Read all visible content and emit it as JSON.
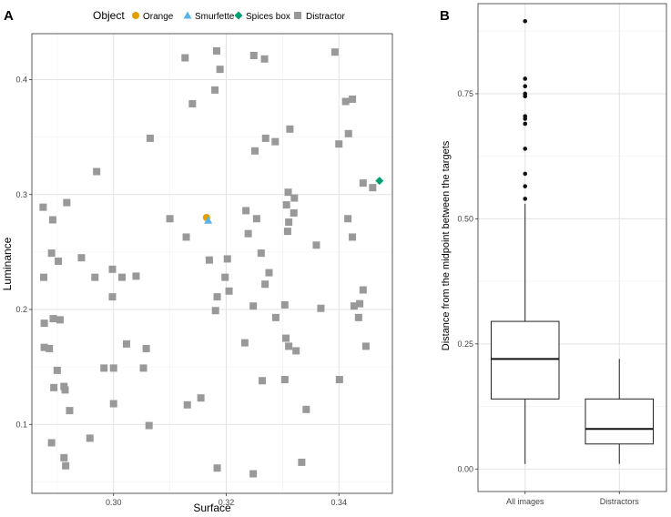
{
  "panel_labels": {
    "a": "A",
    "b": "B"
  },
  "legend": {
    "title": "Object",
    "items": [
      {
        "label": "Orange",
        "color": "#E69F00",
        "shape": "circle"
      },
      {
        "label": "Smurfette",
        "color": "#56B4E9",
        "shape": "triangle"
      },
      {
        "label": "Spices box",
        "color": "#009E73",
        "shape": "diamond"
      },
      {
        "label": "Distractor",
        "color": "#999999",
        "shape": "square"
      }
    ]
  },
  "chart_data": [
    {
      "type": "scatter",
      "panel": "A",
      "xlabel": "Surface",
      "ylabel": "Luminance",
      "xlim": [
        0.2855,
        0.3495
      ],
      "ylim": [
        0.04,
        0.44
      ],
      "xticks": [
        0.3,
        0.32,
        0.34
      ],
      "xtick_labels": [
        "0.30",
        "0.32",
        "0.34"
      ],
      "yticks": [
        0.1,
        0.2,
        0.3,
        0.4
      ],
      "ytick_labels": [
        "0.1",
        "0.2",
        "0.3",
        "0.4"
      ],
      "grid": true,
      "series": [
        {
          "name": "Orange",
          "points": [
            [
              0.3165,
              0.28
            ]
          ]
        },
        {
          "name": "Smurfette",
          "points": [
            [
              0.3168,
              0.277
            ]
          ]
        },
        {
          "name": "Spices box",
          "points": [
            [
              0.3472,
              0.312
            ]
          ]
        },
        {
          "name": "Distractor",
          "points": [
            [
              0.3127,
              0.419
            ],
            [
              0.3183,
              0.425
            ],
            [
              0.3189,
              0.409
            ],
            [
              0.318,
              0.391
            ],
            [
              0.3249,
              0.421
            ],
            [
              0.3268,
              0.418
            ],
            [
              0.3393,
              0.424
            ],
            [
              0.3424,
              0.383
            ],
            [
              0.3412,
              0.381
            ],
            [
              0.314,
              0.379
            ],
            [
              0.3065,
              0.349
            ],
            [
              0.327,
              0.349
            ],
            [
              0.3313,
              0.357
            ],
            [
              0.3287,
              0.346
            ],
            [
              0.3417,
              0.353
            ],
            [
              0.3251,
              0.338
            ],
            [
              0.34,
              0.344
            ],
            [
              0.297,
              0.32
            ],
            [
              0.3443,
              0.31
            ],
            [
              0.346,
              0.306
            ],
            [
              0.331,
              0.302
            ],
            [
              0.3321,
              0.297
            ],
            [
              0.3307,
              0.291
            ],
            [
              0.3235,
              0.286
            ],
            [
              0.332,
              0.284
            ],
            [
              0.3311,
              0.276
            ],
            [
              0.3309,
              0.268
            ],
            [
              0.31,
              0.279
            ],
            [
              0.3254,
              0.279
            ],
            [
              0.3416,
              0.279
            ],
            [
              0.3239,
              0.266
            ],
            [
              0.3129,
              0.263
            ],
            [
              0.3424,
              0.263
            ],
            [
              0.336,
              0.256
            ],
            [
              0.3262,
              0.249
            ],
            [
              0.2875,
              0.289
            ],
            [
              0.2917,
              0.293
            ],
            [
              0.2892,
              0.278
            ],
            [
              0.289,
              0.249
            ],
            [
              0.2943,
              0.245
            ],
            [
              0.2902,
              0.242
            ],
            [
              0.317,
              0.243
            ],
            [
              0.3202,
              0.244
            ],
            [
              0.2967,
              0.228
            ],
            [
              0.2998,
              0.235
            ],
            [
              0.3015,
              0.228
            ],
            [
              0.304,
              0.229
            ],
            [
              0.2876,
              0.228
            ],
            [
              0.3198,
              0.228
            ],
            [
              0.3276,
              0.232
            ],
            [
              0.3269,
              0.222
            ],
            [
              0.3184,
              0.211
            ],
            [
              0.3205,
              0.216
            ],
            [
              0.2998,
              0.211
            ],
            [
              0.3248,
              0.203
            ],
            [
              0.3181,
              0.199
            ],
            [
              0.3443,
              0.217
            ],
            [
              0.3437,
              0.205
            ],
            [
              0.3427,
              0.203
            ],
            [
              0.3368,
              0.201
            ],
            [
              0.3435,
              0.193
            ],
            [
              0.3304,
              0.204
            ],
            [
              0.3288,
              0.193
            ],
            [
              0.2893,
              0.192
            ],
            [
              0.2905,
              0.191
            ],
            [
              0.2877,
              0.188
            ],
            [
              0.3306,
              0.175
            ],
            [
              0.3311,
              0.168
            ],
            [
              0.3324,
              0.164
            ],
            [
              0.3448,
              0.168
            ],
            [
              0.3233,
              0.171
            ],
            [
              0.2877,
              0.167
            ],
            [
              0.2886,
              0.166
            ],
            [
              0.3023,
              0.17
            ],
            [
              0.3058,
              0.166
            ],
            [
              0.2912,
              0.133
            ],
            [
              0.2914,
              0.13
            ],
            [
              0.2894,
              0.132
            ],
            [
              0.29,
              0.147
            ],
            [
              0.2983,
              0.149
            ],
            [
              0.3,
              0.149
            ],
            [
              0.3053,
              0.149
            ],
            [
              0.3264,
              0.138
            ],
            [
              0.3304,
              0.139
            ],
            [
              0.3401,
              0.139
            ],
            [
              0.2922,
              0.112
            ],
            [
              0.3,
              0.118
            ],
            [
              0.3131,
              0.117
            ],
            [
              0.3155,
              0.123
            ],
            [
              0.3342,
              0.113
            ],
            [
              0.3063,
              0.099
            ],
            [
              0.2958,
              0.088
            ],
            [
              0.289,
              0.084
            ],
            [
              0.2912,
              0.071
            ],
            [
              0.2915,
              0.064
            ],
            [
              0.3184,
              0.062
            ],
            [
              0.3248,
              0.057
            ],
            [
              0.3334,
              0.067
            ]
          ]
        }
      ]
    },
    {
      "type": "boxplot",
      "panel": "B",
      "xlabel": "",
      "ylabel": "Distance from the midpoint between the targets",
      "ylim": [
        -0.045,
        0.93
      ],
      "yticks": [
        0.0,
        0.25,
        0.5,
        0.75
      ],
      "ytick_labels": [
        "0.00",
        "0.25",
        "0.50",
        "0.75"
      ],
      "grid": true,
      "categories": [
        "All images",
        "Distractors"
      ],
      "boxes": [
        {
          "name": "All images",
          "min": 0.01,
          "q1": 0.14,
          "median": 0.22,
          "q3": 0.295,
          "max": 0.53,
          "outliers": [
            0.895,
            0.78,
            0.765,
            0.75,
            0.745,
            0.705,
            0.7,
            0.69,
            0.64,
            0.59,
            0.565,
            0.54
          ]
        },
        {
          "name": "Distractors",
          "min": 0.01,
          "q1": 0.05,
          "median": 0.08,
          "q3": 0.14,
          "max": 0.22,
          "outliers": []
        }
      ]
    }
  ]
}
